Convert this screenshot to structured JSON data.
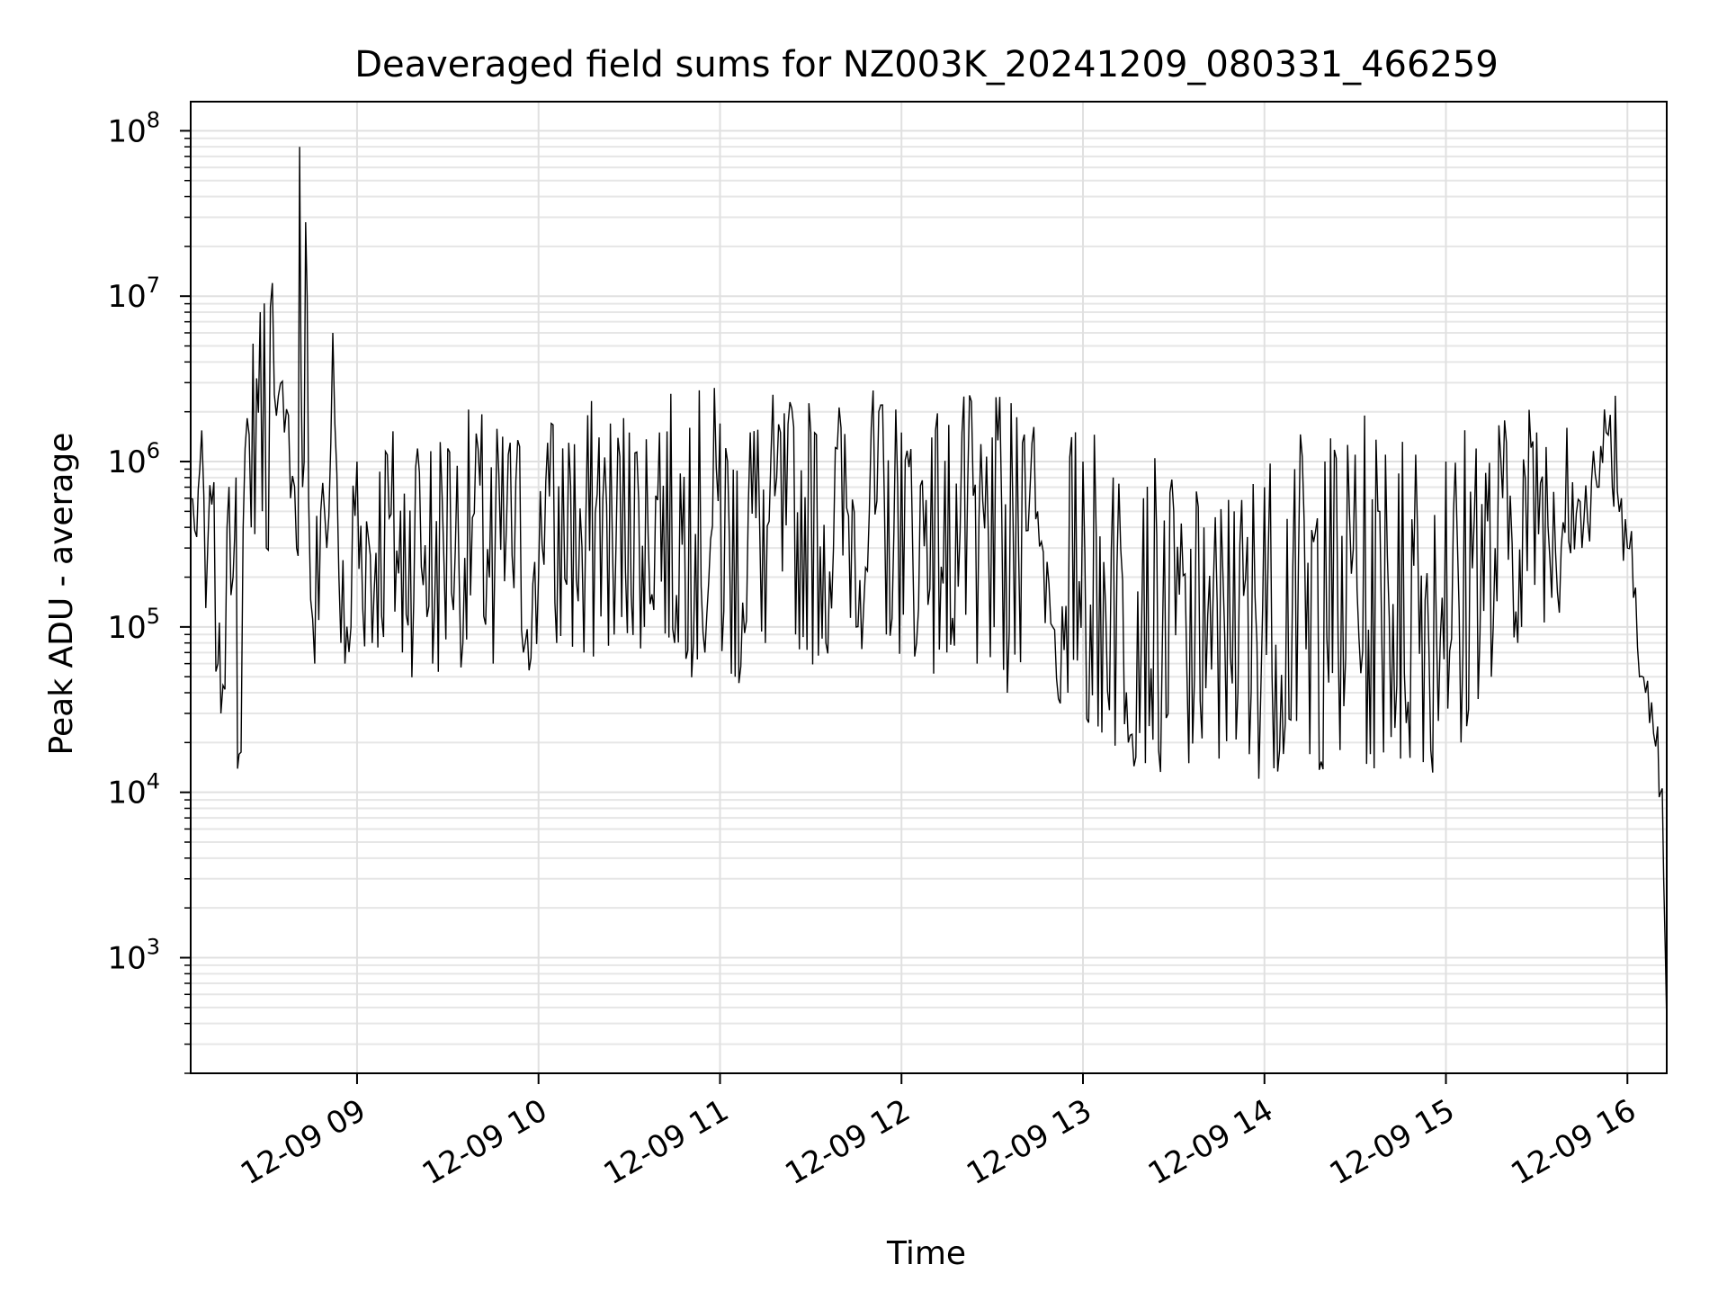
{
  "chart_data": {
    "type": "line",
    "title": "Deaveraged field sums for NZ003K_20241209_080331_466259",
    "xlabel": "Time",
    "ylabel": "Peak ADU - average",
    "yscale": "log",
    "grid": true,
    "x_range": [
      "12-09 08:05",
      "12-09 16:13"
    ],
    "ylim": [
      200,
      150000000
    ],
    "xticks": [
      {
        "t": "12-09 09:00",
        "label": "12-09 09"
      },
      {
        "t": "12-09 10:00",
        "label": "12-09 10"
      },
      {
        "t": "12-09 11:00",
        "label": "12-09 11"
      },
      {
        "t": "12-09 12:00",
        "label": "12-09 12"
      },
      {
        "t": "12-09 13:00",
        "label": "12-09 13"
      },
      {
        "t": "12-09 14:00",
        "label": "12-09 14"
      },
      {
        "t": "12-09 15:00",
        "label": "12-09 15"
      },
      {
        "t": "12-09 16:00",
        "label": "12-09 16"
      }
    ],
    "yticks": [
      {
        "value": 1000,
        "base": "10",
        "exp": "3"
      },
      {
        "value": 10000,
        "base": "10",
        "exp": "4"
      },
      {
        "value": 100000,
        "base": "10",
        "exp": "5"
      },
      {
        "value": 1000000,
        "base": "10",
        "exp": "6"
      },
      {
        "value": 10000000,
        "base": "10",
        "exp": "7"
      },
      {
        "value": 100000000,
        "base": "10",
        "exp": "8"
      }
    ],
    "series": [
      {
        "color": "#000000",
        "points": [
          [
            "12-09 08:05",
            600000
          ],
          [
            "12-09 08:07",
            350000
          ],
          [
            "12-09 08:08",
            900000
          ],
          [
            "12-09 08:10",
            130000
          ],
          [
            "12-09 08:12",
            550000
          ],
          [
            "12-09 08:14",
            60000
          ],
          [
            "12-09 08:15",
            30000
          ],
          [
            "12-09 08:17",
            400000
          ],
          [
            "12-09 08:19",
            200000
          ],
          [
            "12-09 08:20",
            800000
          ],
          [
            "12-09 08:21",
            17000
          ],
          [
            "12-09 08:23",
            1200000
          ],
          [
            "12-09 08:25",
            400000
          ],
          [
            "12-09 08:28",
            8000000
          ],
          [
            "12-09 08:30",
            300000
          ],
          [
            "12-09 08:32",
            12000000
          ],
          [
            "12-09 08:34",
            2500000
          ],
          [
            "12-09 08:36",
            1500000
          ],
          [
            "12-09 08:38",
            600000
          ],
          [
            "12-09 08:40",
            300000
          ],
          [
            "12-09 08:41",
            80000000
          ],
          [
            "12-09 08:42",
            700000
          ],
          [
            "12-09 08:43",
            28000000
          ],
          [
            "12-09 08:44",
            600000
          ],
          [
            "12-09 08:46",
            60000
          ],
          [
            "12-09 08:48",
            500000
          ],
          [
            "12-09 08:50",
            300000
          ],
          [
            "12-09 08:52",
            6000000
          ],
          [
            "12-09 08:54",
            200000
          ],
          [
            "12-09 08:56",
            60000
          ],
          [
            "12-09 08:58",
            100000
          ],
          [
            "12-09 09:00",
            1000000
          ],
          [
            "12-09 09:05",
            80000
          ],
          [
            "12-09 09:10",
            1100000
          ],
          [
            "12-09 09:15",
            70000
          ],
          [
            "12-09 09:20",
            1200000
          ],
          [
            "12-09 09:25",
            60000
          ],
          [
            "12-09 09:30",
            1200000
          ],
          [
            "12-09 09:35",
            80000
          ],
          [
            "12-09 09:40",
            1200000
          ],
          [
            "12-09 09:45",
            60000
          ],
          [
            "12-09 09:50",
            1100000
          ],
          [
            "12-09 09:55",
            70000
          ],
          [
            "12-09 10:00",
            200000
          ],
          [
            "12-09 10:03",
            1300000
          ],
          [
            "12-09 10:06",
            80000
          ],
          [
            "12-09 10:10",
            1300000
          ],
          [
            "12-09 10:15",
            70000
          ],
          [
            "12-09 10:20",
            1400000
          ],
          [
            "12-09 10:25",
            90000
          ],
          [
            "12-09 10:30",
            1500000
          ],
          [
            "12-09 10:35",
            100000
          ],
          [
            "12-09 10:40",
            1500000
          ],
          [
            "12-09 10:45",
            80000
          ],
          [
            "12-09 10:50",
            1600000
          ],
          [
            "12-09 10:55",
            70000
          ],
          [
            "12-09 11:00",
            1700000
          ],
          [
            "12-09 11:05",
            50000
          ],
          [
            "12-09 11:10",
            1500000
          ],
          [
            "12-09 11:15",
            80000
          ],
          [
            "12-09 11:20",
            1500000
          ],
          [
            "12-09 11:25",
            90000
          ],
          [
            "12-09 11:30",
            1500000
          ],
          [
            "12-09 11:35",
            80000
          ],
          [
            "12-09 11:40",
            1600000
          ],
          [
            "12-09 11:45",
            100000
          ],
          [
            "12-09 11:50",
            1600000
          ],
          [
            "12-09 11:55",
            90000
          ],
          [
            "12-09 12:00",
            1500000
          ],
          [
            "12-09 12:05",
            80000
          ],
          [
            "12-09 12:10",
            1400000
          ],
          [
            "12-09 12:15",
            70000
          ],
          [
            "12-09 12:20",
            1500000
          ],
          [
            "12-09 12:25",
            60000
          ],
          [
            "12-09 12:30",
            1400000
          ],
          [
            "12-09 12:35",
            40000
          ],
          [
            "12-09 12:40",
            1300000
          ],
          [
            "12-09 12:45",
            500000
          ],
          [
            "12-09 12:50",
            100000
          ],
          [
            "12-09 12:55",
            40000
          ],
          [
            "12-09 13:00",
            1000000
          ],
          [
            "12-09 13:05",
            25000
          ],
          [
            "12-09 13:10",
            800000
          ],
          [
            "12-09 13:15",
            20000
          ],
          [
            "12-09 13:20",
            600000
          ],
          [
            "12-09 13:25",
            18000
          ],
          [
            "12-09 13:30",
            500000
          ],
          [
            "12-09 13:35",
            15000
          ],
          [
            "12-09 13:40",
            400000
          ],
          [
            "12-09 13:45",
            16000
          ],
          [
            "12-09 13:50",
            500000
          ],
          [
            "12-09 13:55",
            17000
          ],
          [
            "12-09 14:00",
            700000
          ],
          [
            "12-09 14:05",
            18000
          ],
          [
            "12-09 14:10",
            900000
          ],
          [
            "12-09 14:15",
            17000
          ],
          [
            "12-09 14:20",
            1000000
          ],
          [
            "12-09 14:25",
            18000
          ],
          [
            "12-09 14:30",
            1100000
          ],
          [
            "12-09 14:35",
            17000
          ],
          [
            "12-09 14:40",
            1100000
          ],
          [
            "12-09 14:45",
            16000
          ],
          [
            "12-09 14:50",
            1100000
          ],
          [
            "12-09 14:55",
            18000
          ],
          [
            "12-09 15:00",
            1000000
          ],
          [
            "12-09 15:05",
            20000
          ],
          [
            "12-09 15:10",
            1200000
          ],
          [
            "12-09 15:15",
            50000
          ],
          [
            "12-09 15:20",
            1300000
          ],
          [
            "12-09 15:25",
            100000
          ],
          [
            "12-09 15:30",
            1500000
          ],
          [
            "12-09 15:35",
            150000
          ],
          [
            "12-09 15:40",
            1600000
          ],
          [
            "12-09 15:45",
            300000
          ],
          [
            "12-09 15:50",
            700000
          ],
          [
            "12-09 15:53",
            1500000
          ],
          [
            "12-09 15:55",
            700000
          ],
          [
            "12-09 15:56",
            2500000
          ],
          [
            "12-09 15:58",
            600000
          ],
          [
            "12-09 16:00",
            300000
          ],
          [
            "12-09 16:02",
            150000
          ],
          [
            "12-09 16:04",
            50000
          ],
          [
            "12-09 16:06",
            40000
          ],
          [
            "12-09 16:08",
            35000
          ],
          [
            "12-09 16:10",
            25000
          ],
          [
            "12-09 16:11",
            10000
          ],
          [
            "12-09 16:12",
            3000
          ],
          [
            "12-09 16:13",
            400
          ]
        ]
      }
    ]
  }
}
